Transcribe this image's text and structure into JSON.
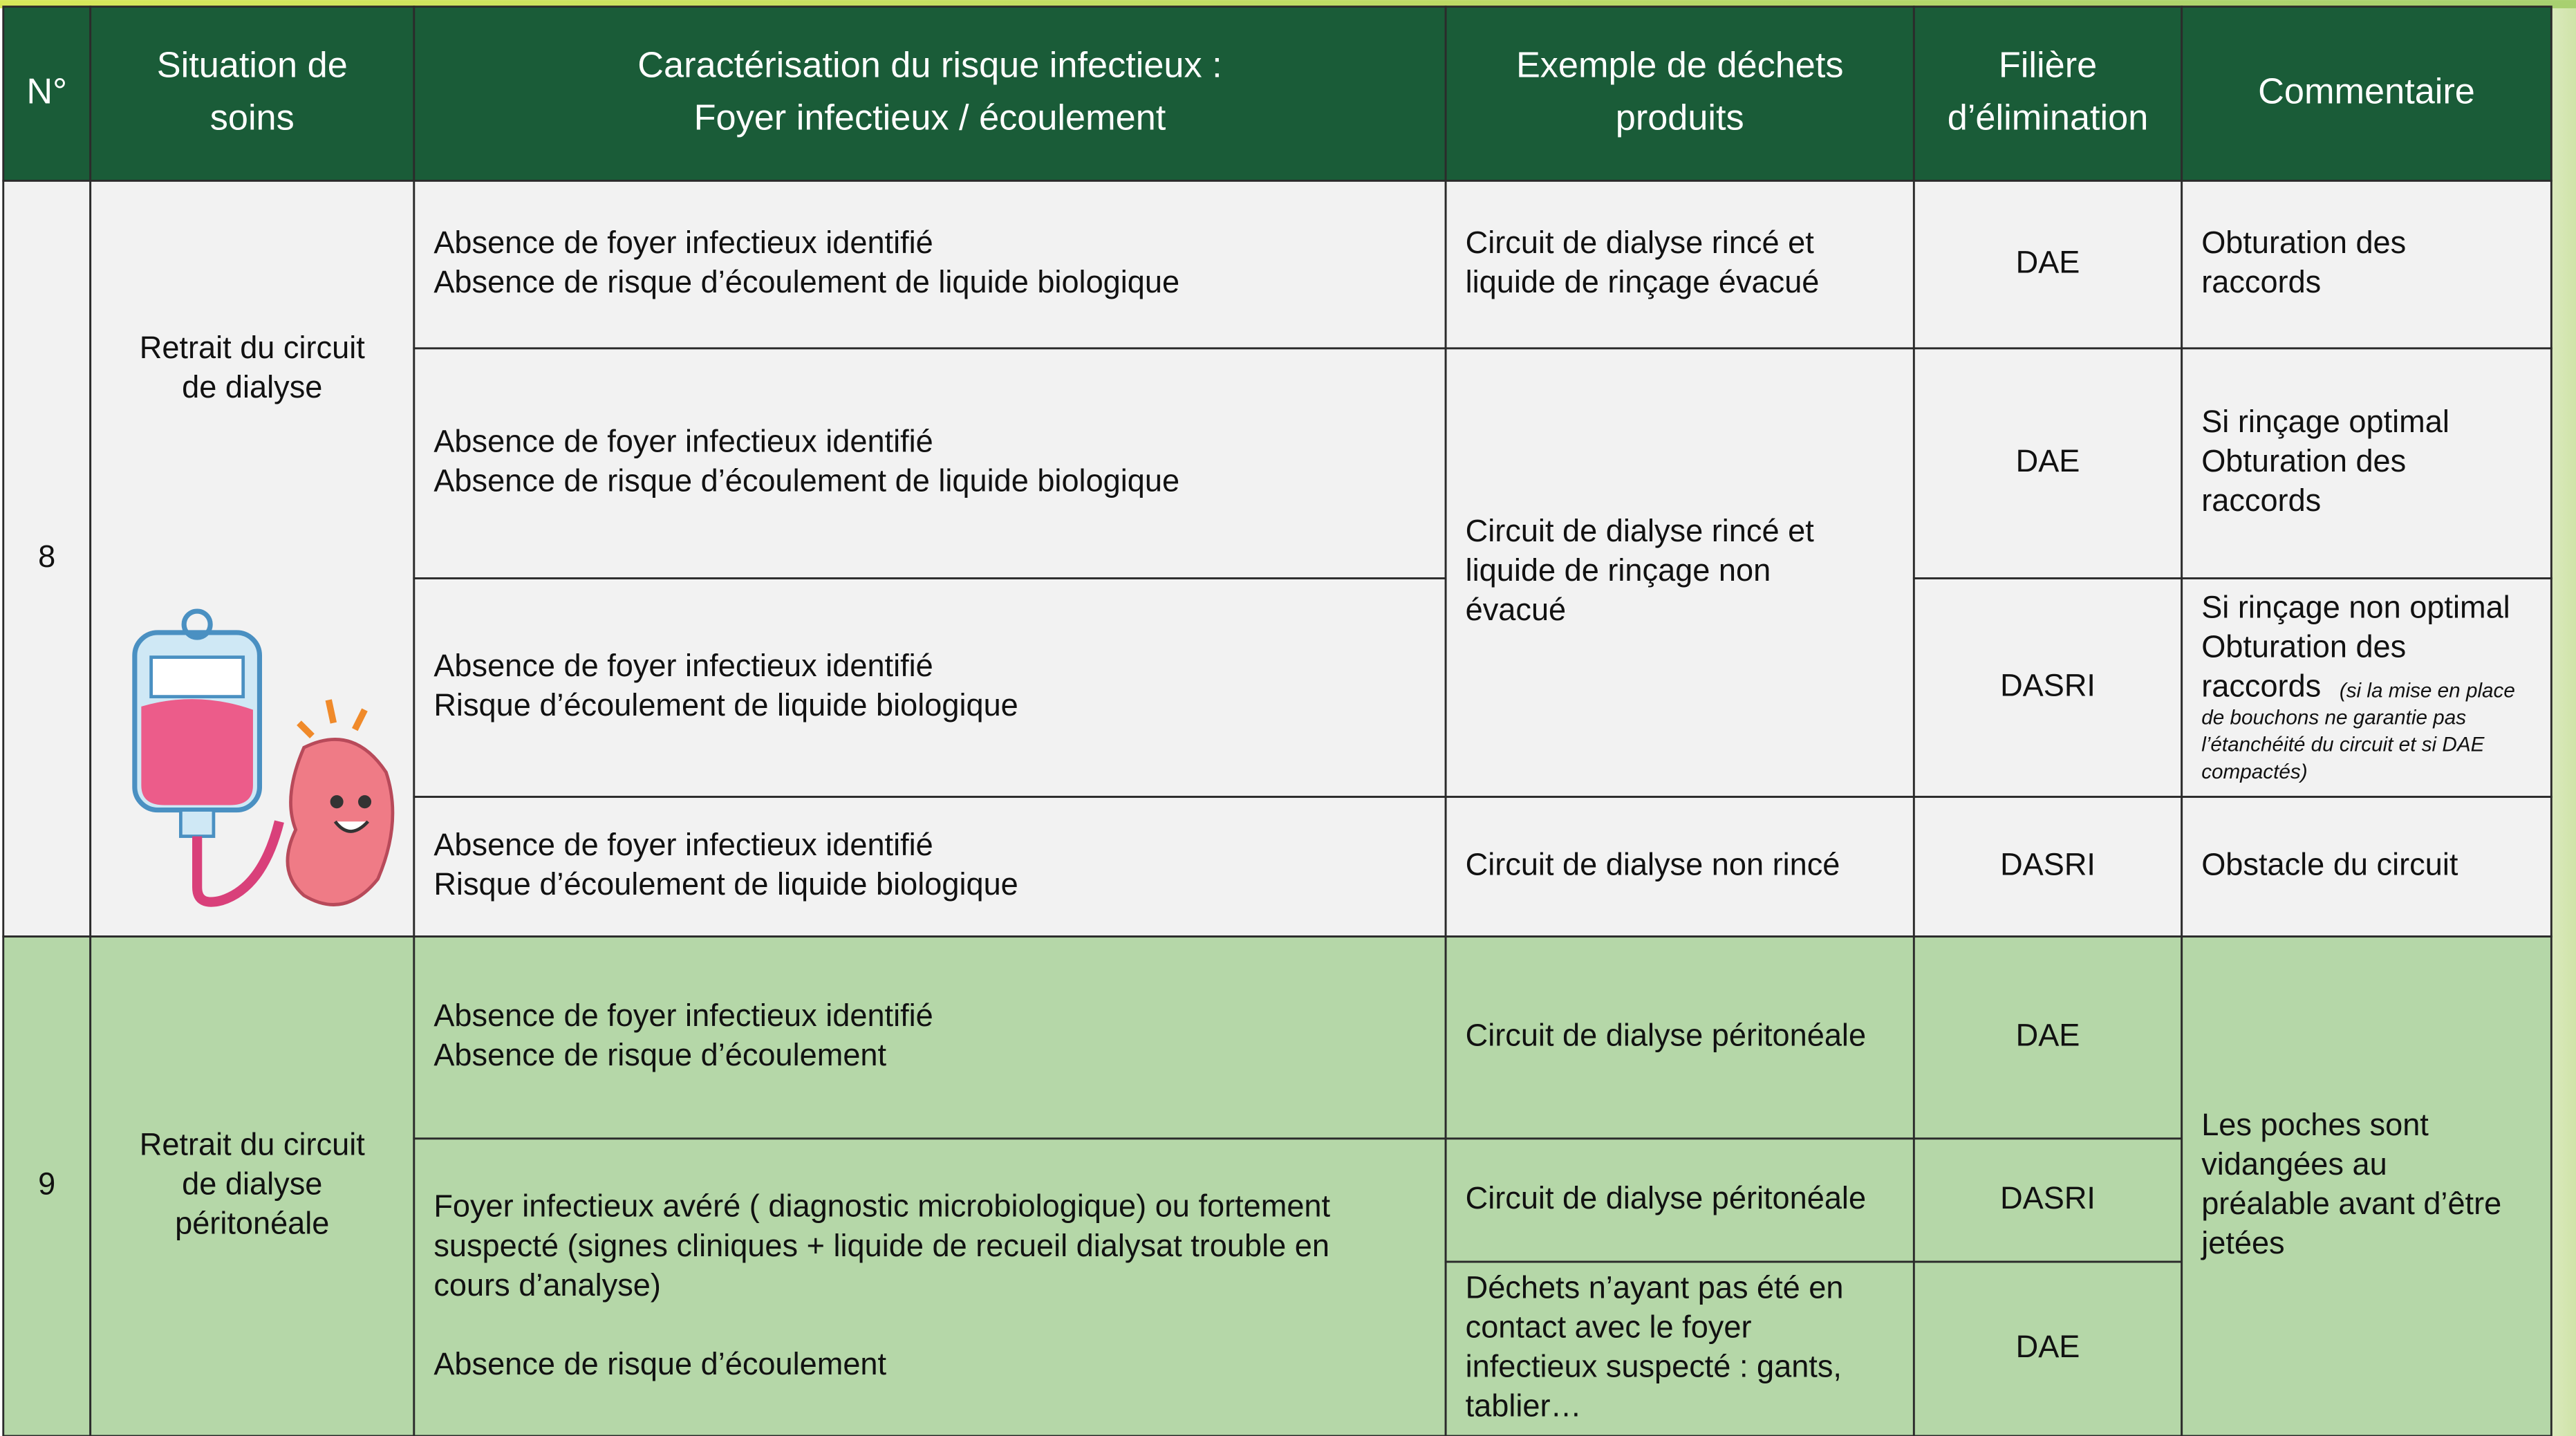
{
  "header": [
    [
      "N°"
    ],
    [
      "Situation de",
      "soins"
    ],
    [
      "Caractérisation du risque infectieux :",
      "Foyer infectieux / écoulement"
    ],
    [
      "Exemple de déchets",
      "produits"
    ],
    [
      "Filière",
      "d’élimination"
    ],
    [
      "Commentaire"
    ]
  ],
  "rows": [
    {
      "number": "8",
      "situation": [
        "Retrait du circuit",
        "de dialyse"
      ],
      "risks": [
        [
          "Absence de foyer infectieux identifié",
          "Absence de risque d’écoulement de liquide biologique"
        ],
        [
          "Absence de foyer infectieux identifié",
          "Absence de risque d’écoulement de liquide biologique"
        ],
        [
          "Absence de foyer infectieux identifié",
          "Risque d’écoulement de liquide biologique"
        ],
        [
          "Absence de foyer infectieux identifié",
          "Risque d’écoulement de liquide biologique"
        ]
      ],
      "examples": [
        [
          "Circuit de dialyse rincé et",
          "liquide de rinçage évacué"
        ],
        [
          "Circuit de dialyse rincé et",
          "liquide de rinçage non",
          "évacué"
        ],
        [
          "Circuit de dialyse non rincé"
        ]
      ],
      "filieres": [
        "DAE",
        "DAE",
        "DASRI",
        "DASRI"
      ],
      "comments": [
        {
          "lines": [
            "Obturation des",
            "raccords"
          ]
        },
        {
          "lines": [
            "Si rinçage optimal",
            "Obturation des",
            "raccords"
          ]
        },
        {
          "lines": [
            "Si rinçage non optimal",
            "Obturation des",
            "raccords"
          ],
          "note": [
            "(si la mise en place",
            "de bouchons ne garantie pas",
            "l’étanchéité du circuit et si DAE",
            "compactés)"
          ]
        },
        {
          "lines": [
            "Obstacle du circuit"
          ]
        }
      ]
    },
    {
      "number": "9",
      "situation": [
        "Retrait du  circuit",
        "de  dialyse",
        "péritonéale"
      ],
      "risks": [
        [
          "Absence de foyer infectieux identifié",
          "Absence de risque d’écoulement"
        ],
        [
          [
            "Foyer infectieux avéré ( diagnostic microbiologique) ou fortement",
            "suspecté (signes cliniques + liquide de recueil dialysat trouble en",
            "cours d’analyse)"
          ],
          [
            "Absence de risque d’écoulement"
          ]
        ]
      ],
      "examples": [
        [
          "Circuit de dialyse péritonéale"
        ],
        [
          "Circuit de dialyse péritonéale"
        ],
        [
          "Déchets n’ayant pas été en",
          "contact avec le foyer",
          "infectieux suspecté : gants,",
          "tablier…"
        ]
      ],
      "filieres": [
        "DAE",
        "DASRI",
        "DAE"
      ],
      "comments": [
        {
          "lines": [
            "Les poches sont",
            "vidangées au",
            "préalable avant d’être",
            "jetées"
          ]
        }
      ]
    }
  ]
}
